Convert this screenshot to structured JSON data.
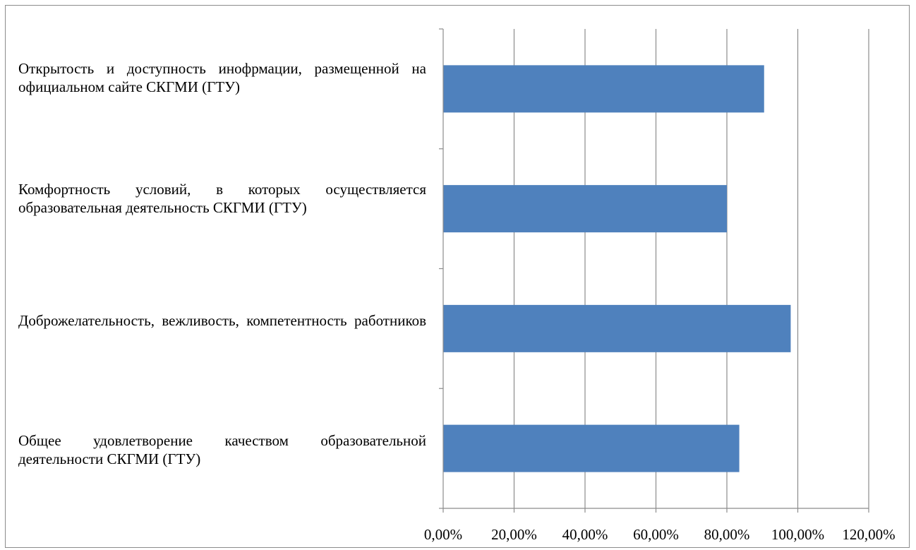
{
  "chart_data": {
    "type": "bar",
    "orientation": "horizontal",
    "categories": [
      "Открытость и доступность инофрмации, размещенной на официальном сайте СКГМИ (ГТУ)",
      "Комфортность условий, в которых осуществляется образовательная деятельность СКГМИ (ГТУ)",
      "Доброжелательность, вежливость, компетентность работников",
      "Общее удовлетворение качеством образовательной деятельности СКГМИ (ГТУ)"
    ],
    "values": [
      0.905,
      0.8,
      0.98,
      0.835
    ],
    "xlim": [
      0,
      1.2
    ],
    "xticks": [
      0,
      0.2,
      0.4,
      0.6,
      0.8,
      1.0,
      1.2
    ],
    "xtick_labels": [
      "0,00%",
      "20,00%",
      "40,00%",
      "60,00%",
      "80,00%",
      "100,00%",
      "120,00%"
    ],
    "bar_color": "#4f81bd",
    "grid": "vertical",
    "legend": "none",
    "title": "",
    "xlabel": "",
    "ylabel": ""
  }
}
